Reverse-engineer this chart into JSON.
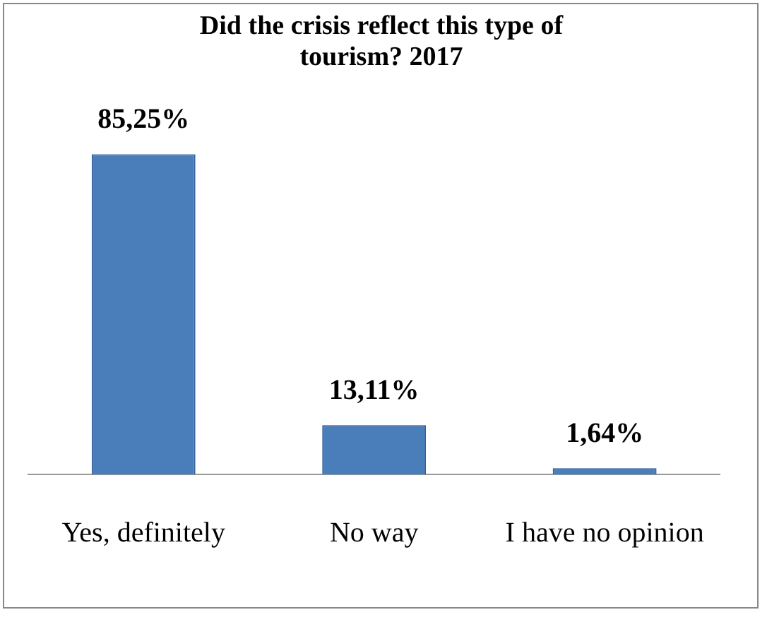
{
  "chart_data": {
    "type": "bar",
    "title": "Did the crisis reflect this type of tourism? 2017",
    "categories": [
      "Yes, definitely",
      "No way",
      "I have no opinion"
    ],
    "values": [
      85.25,
      13.11,
      1.64
    ],
    "color": "#4a7ebb",
    "value_labels": [
      "85,25%",
      "13,11%",
      "1,64%"
    ],
    "grid": false,
    "legend": false
  }
}
